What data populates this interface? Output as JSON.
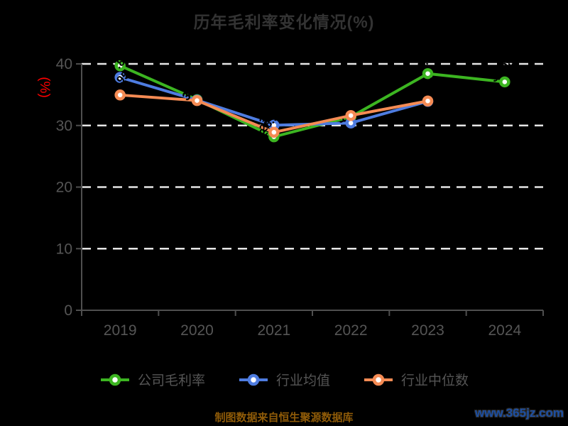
{
  "title": "历年毛利率变化情况(%)",
  "footer": {
    "source_note": "制图数据来自恒生聚源数据库",
    "watermark": "www.365jz.com"
  },
  "colors": {
    "background": "#000000",
    "title": "#333333",
    "axis_label": "#555555",
    "axis_line": "#4f4f4f",
    "gridline": "#e6e6e6",
    "y_axis_name": "#ff0000",
    "point_label": "#000000",
    "marker_fill": "#ffffff",
    "source_note": "#8f5b08",
    "watermark": "#1c4fa3"
  },
  "chart_data": {
    "type": "line",
    "title": "历年毛利率变化情况(%)",
    "ylabel": "(%)",
    "xlabel": "",
    "categories": [
      "2019",
      "2020",
      "2021",
      "2022",
      "2023",
      "2024"
    ],
    "series": [
      {
        "name": "公司毛利率",
        "color": "#3cb521",
        "values": [
          39.7,
          34.2,
          28.17,
          31.4,
          38.42,
          37.08
        ]
      },
      {
        "name": "行业均值",
        "color": "#4e7ce0",
        "values": [
          37.81,
          34.12,
          30.04,
          30.41,
          33.92,
          null
        ]
      },
      {
        "name": "行业中位数",
        "color": "#f58b54",
        "values": [
          34.95,
          34.05,
          28.9,
          31.62,
          33.98,
          null
        ]
      }
    ],
    "ylim": [
      0,
      40
    ],
    "yticks": [
      0,
      10,
      20,
      30,
      40
    ],
    "grid": true,
    "gridline_style": "dashed-white",
    "point_labels_rotated_45deg_black": true,
    "legend_position": "bottom"
  }
}
